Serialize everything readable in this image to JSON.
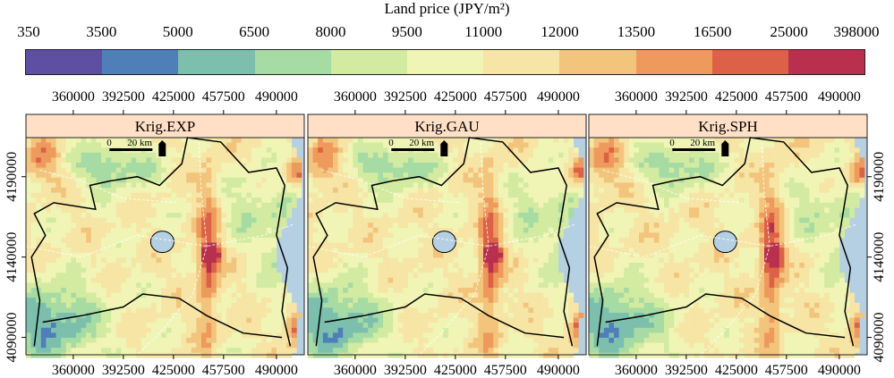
{
  "legend": {
    "title": "Land price (JPY/m²)",
    "breaks": [
      "350",
      "3500",
      "5000",
      "6500",
      "8000",
      "9500",
      "11000",
      "12000",
      "13500",
      "16500",
      "25000",
      "398000"
    ],
    "colors": [
      "#5e4fa2",
      "#4f7fb8",
      "#7cbfad",
      "#a6dba4",
      "#d2eba0",
      "#f0f5b6",
      "#f6e5a4",
      "#f3c47c",
      "#ee9a5d",
      "#dd6146",
      "#b8304e",
      "#7a0a35"
    ]
  },
  "axes": {
    "x_ticks": [
      "360000",
      "392500",
      "425000",
      "457500",
      "490000"
    ],
    "y_ticks": [
      "4090000",
      "4140000",
      "4190000"
    ]
  },
  "panels": [
    {
      "title": "Krig.EXP"
    },
    {
      "title": "Krig.GAU"
    },
    {
      "title": "Krig.SPH"
    }
  ],
  "scalebar": {
    "zero": "0",
    "label": "20 km"
  },
  "map_colors": {
    "sea": "#b5cfe3",
    "boundary": "#000000",
    "lake": "#b5cfe3"
  }
}
